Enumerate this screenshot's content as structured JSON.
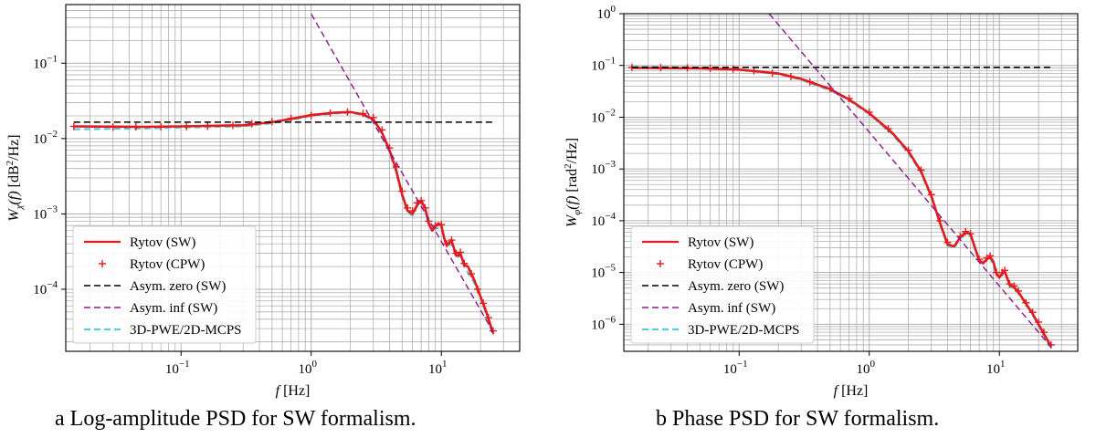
{
  "captions": {
    "a": "a Log-amplitude PSD for SW formalism.",
    "b": "b Phase PSD for SW formalism."
  },
  "chart_data": [
    {
      "type": "line",
      "panel": "a",
      "xscale": "log",
      "yscale": "log",
      "xlim": [
        0.013,
        40
      ],
      "ylim": [
        1.5e-05,
        0.6
      ],
      "xlabel_main": "f",
      "xlabel_unit": " [Hz]",
      "ylabel_main": "W",
      "ylabel_sub": "χ",
      "ylabel_fn": "(f)",
      "ylabel_unit_pre": " [dB",
      "ylabel_unit_sup": "2",
      "ylabel_unit_post": "/Hz]",
      "grid": true,
      "legend_position": "lower-left",
      "x_ticks": [
        {
          "value": 0.1,
          "base": "10",
          "exp": "−1"
        },
        {
          "value": 1,
          "base": "10",
          "exp": "0"
        },
        {
          "value": 10,
          "base": "10",
          "exp": "1"
        }
      ],
      "y_ticks": [
        {
          "value": 0.0001,
          "base": "10",
          "exp": "−4"
        },
        {
          "value": 0.001,
          "base": "10",
          "exp": "−3"
        },
        {
          "value": 0.01,
          "base": "10",
          "exp": "−2"
        },
        {
          "value": 0.1,
          "base": "10",
          "exp": "−1"
        }
      ],
      "series": [
        {
          "name": "Rytov (SW)",
          "color": "#e41a1c",
          "style": "solid",
          "width": 2.6,
          "marker": "none",
          "points": [
            [
              0.015,
              0.0145
            ],
            [
              0.05,
              0.0143
            ],
            [
              0.1,
              0.0145
            ],
            [
              0.3,
              0.015
            ],
            [
              0.5,
              0.0165
            ],
            [
              0.8,
              0.019
            ],
            [
              1.0,
              0.0205
            ],
            [
              1.5,
              0.022
            ],
            [
              2.0,
              0.0225
            ],
            [
              2.5,
              0.021
            ],
            [
              3.0,
              0.018
            ],
            [
              3.5,
              0.012
            ],
            [
              4.0,
              0.007
            ],
            [
              4.5,
              0.0038
            ],
            [
              5.0,
              0.0018
            ],
            [
              5.5,
              0.0011
            ],
            [
              6.0,
              0.001
            ],
            [
              6.5,
              0.0013
            ],
            [
              7.0,
              0.0015
            ],
            [
              7.5,
              0.0012
            ],
            [
              8.0,
              0.00075
            ],
            [
              8.5,
              0.0006
            ],
            [
              9.0,
              0.00068
            ],
            [
              9.5,
              0.00075
            ],
            [
              10.0,
              0.0007
            ],
            [
              10.5,
              0.00048
            ],
            [
              11.0,
              0.00038
            ],
            [
              11.5,
              0.00042
            ],
            [
              12.0,
              0.00044
            ],
            [
              13.0,
              0.00028
            ],
            [
              13.5,
              0.00028
            ],
            [
              14.0,
              0.0003
            ],
            [
              15.0,
              0.00021
            ],
            [
              16.0,
              0.0002
            ],
            [
              18.0,
              0.00013
            ],
            [
              20.0,
              8e-05
            ],
            [
              22.0,
              5.2e-05
            ],
            [
              25.0,
              2.6e-05
            ]
          ]
        },
        {
          "name": "Rytov (CPW)",
          "color": "#e41a1c",
          "style": "none",
          "width": 1.4,
          "marker": "plus",
          "points": [
            [
              0.015,
              0.0145
            ],
            [
              0.03,
              0.0142
            ],
            [
              0.045,
              0.0143
            ],
            [
              0.07,
              0.0143
            ],
            [
              0.11,
              0.0144
            ],
            [
              0.16,
              0.0146
            ],
            [
              0.25,
              0.015
            ],
            [
              0.35,
              0.0157
            ],
            [
              0.5,
              0.0168
            ],
            [
              0.7,
              0.0185
            ],
            [
              1.0,
              0.0202
            ],
            [
              1.4,
              0.0218
            ],
            [
              1.9,
              0.0225
            ],
            [
              2.5,
              0.0215
            ],
            [
              3.0,
              0.019
            ],
            [
              3.5,
              0.013
            ],
            [
              4.0,
              0.0075
            ],
            [
              4.5,
              0.0042
            ],
            [
              5.0,
              0.002
            ],
            [
              5.5,
              0.0012
            ],
            [
              6.0,
              0.0011
            ],
            [
              6.5,
              0.0014
            ],
            [
              7.0,
              0.0015
            ],
            [
              7.5,
              0.0012
            ],
            [
              8.0,
              0.0008
            ],
            [
              9.0,
              0.0007
            ],
            [
              10.0,
              0.00072
            ],
            [
              11.0,
              0.0004
            ],
            [
              12.0,
              0.00045
            ],
            [
              13.0,
              0.0003
            ],
            [
              14.0,
              0.00031
            ],
            [
              15.0,
              0.00022
            ],
            [
              17.0,
              0.00016
            ],
            [
              19.0,
              0.0001
            ],
            [
              21.0,
              6.5e-05
            ],
            [
              23.0,
              4.2e-05
            ],
            [
              25.0,
              2.8e-05
            ]
          ]
        },
        {
          "name": "Asym. zero (SW)",
          "color": "#000000",
          "style": "dashed",
          "width": 1.6,
          "marker": "none",
          "points": [
            [
              0.015,
              0.0165
            ],
            [
              25.0,
              0.0165
            ]
          ]
        },
        {
          "name": "Asym. inf (SW)",
          "color": "#8b1a8b",
          "style": "dashed",
          "width": 1.4,
          "marker": "none",
          "points": [
            [
              1.0,
              0.45
            ],
            [
              25.0,
              2.7e-05
            ]
          ]
        },
        {
          "name": "3D-PWE/2D-MCPS",
          "color": "#5bc8dc",
          "style": "dashed",
          "width": 2.2,
          "marker": "none",
          "points": [
            [
              0.015,
              0.0133
            ],
            [
              0.05,
              0.0136
            ],
            [
              0.1,
              0.014
            ],
            [
              0.3,
              0.0145
            ],
            [
              0.5,
              0.016
            ],
            [
              0.8,
              0.0185
            ],
            [
              1.0,
              0.02
            ],
            [
              1.5,
              0.0215
            ],
            [
              2.0,
              0.022
            ],
            [
              2.5,
              0.0205
            ],
            [
              3.0,
              0.0172
            ],
            [
              3.5,
              0.0115
            ],
            [
              4.0,
              0.0066
            ],
            [
              4.5,
              0.0035
            ],
            [
              5.0,
              0.0017
            ],
            [
              5.5,
              0.00105
            ],
            [
              6.0,
              0.00095
            ],
            [
              6.5,
              0.00125
            ],
            [
              7.0,
              0.00145
            ],
            [
              7.5,
              0.00115
            ],
            [
              8.0,
              0.00072
            ],
            [
              9.0,
              0.00064
            ],
            [
              10.0,
              0.00066
            ],
            [
              11.0,
              0.00037
            ],
            [
              12.0,
              0.0004
            ],
            [
              13.0,
              0.00026
            ],
            [
              14.0,
              0.00028
            ],
            [
              15.0,
              0.0002
            ],
            [
              18.0,
              0.00012
            ],
            [
              20.0,
              7.5e-05
            ],
            [
              22.0,
              4.8e-05
            ],
            [
              25.0,
              2.4e-05
            ]
          ]
        }
      ]
    },
    {
      "type": "line",
      "panel": "b",
      "xscale": "log",
      "yscale": "log",
      "xlim": [
        0.013,
        40
      ],
      "ylim": [
        3e-07,
        1
      ],
      "xlabel_main": "f",
      "xlabel_unit": " [Hz]",
      "ylabel_main": "W",
      "ylabel_sub": "φ",
      "ylabel_fn": "(f)",
      "ylabel_unit_pre": " [rad",
      "ylabel_unit_sup": "2",
      "ylabel_unit_post": "/Hz]",
      "grid": true,
      "legend_position": "lower-left",
      "x_ticks": [
        {
          "value": 0.1,
          "base": "10",
          "exp": "−1"
        },
        {
          "value": 1,
          "base": "10",
          "exp": "0"
        },
        {
          "value": 10,
          "base": "10",
          "exp": "1"
        }
      ],
      "y_ticks": [
        {
          "value": 1e-06,
          "base": "10",
          "exp": "−6"
        },
        {
          "value": 1e-05,
          "base": "10",
          "exp": "−5"
        },
        {
          "value": 0.0001,
          "base": "10",
          "exp": "−4"
        },
        {
          "value": 0.001,
          "base": "10",
          "exp": "−3"
        },
        {
          "value": 0.01,
          "base": "10",
          "exp": "−2"
        },
        {
          "value": 0.1,
          "base": "10",
          "exp": "−1"
        },
        {
          "value": 1,
          "base": "10",
          "exp": "0"
        }
      ],
      "series": [
        {
          "name": "Rytov (SW)",
          "color": "#e41a1c",
          "style": "solid",
          "width": 2.6,
          "marker": "none",
          "points": [
            [
              0.015,
              0.09
            ],
            [
              0.05,
              0.088
            ],
            [
              0.1,
              0.083
            ],
            [
              0.2,
              0.07
            ],
            [
              0.3,
              0.055
            ],
            [
              0.5,
              0.035
            ],
            [
              0.7,
              0.022
            ],
            [
              1.0,
              0.012
            ],
            [
              1.5,
              0.005
            ],
            [
              2.0,
              0.0022
            ],
            [
              2.5,
              0.0009
            ],
            [
              3.0,
              0.0003
            ],
            [
              3.5,
              9e-05
            ],
            [
              4.0,
              3.5e-05
            ],
            [
              4.5,
              3.2e-05
            ],
            [
              5.0,
              4.8e-05
            ],
            [
              5.5,
              6e-05
            ],
            [
              6.0,
              5.5e-05
            ],
            [
              6.5,
              3e-05
            ],
            [
              7.0,
              1.7e-05
            ],
            [
              7.5,
              1.5e-05
            ],
            [
              8.0,
              1.8e-05
            ],
            [
              8.5,
              2e-05
            ],
            [
              9.0,
              1.6e-05
            ],
            [
              9.5,
              9.5e-06
            ],
            [
              10.0,
              8e-06
            ],
            [
              10.5,
              9.5e-06
            ],
            [
              11.0,
              1.05e-05
            ],
            [
              12.0,
              5.8e-06
            ],
            [
              13.0,
              5.2e-06
            ],
            [
              14.0,
              4.2e-06
            ],
            [
              16.0,
              2.5e-06
            ],
            [
              18.0,
              1.6e-06
            ],
            [
              20.0,
              1e-06
            ],
            [
              22.0,
              6.5e-07
            ],
            [
              25.0,
              3.7e-07
            ]
          ]
        },
        {
          "name": "Rytov (CPW)",
          "color": "#e41a1c",
          "style": "none",
          "width": 1.4,
          "marker": "plus",
          "points": [
            [
              0.015,
              0.092
            ],
            [
              0.025,
              0.091
            ],
            [
              0.04,
              0.09
            ],
            [
              0.06,
              0.088
            ],
            [
              0.09,
              0.085
            ],
            [
              0.13,
              0.079
            ],
            [
              0.18,
              0.071
            ],
            [
              0.25,
              0.061
            ],
            [
              0.35,
              0.048
            ],
            [
              0.5,
              0.036
            ],
            [
              0.7,
              0.023
            ],
            [
              1.0,
              0.0125
            ],
            [
              1.4,
              0.006
            ],
            [
              2.0,
              0.0023
            ],
            [
              2.5,
              0.00095
            ],
            [
              3.0,
              0.00032
            ],
            [
              3.5,
              0.0001
            ],
            [
              4.0,
              3.8e-05
            ],
            [
              5.0,
              5e-05
            ],
            [
              5.5,
              6.2e-05
            ],
            [
              6.0,
              5.6e-05
            ],
            [
              7.0,
              1.8e-05
            ],
            [
              8.0,
              1.9e-05
            ],
            [
              8.5,
              2.1e-05
            ],
            [
              9.5,
              1e-05
            ],
            [
              10.5,
              1e-05
            ],
            [
              11.0,
              1.1e-05
            ],
            [
              12.0,
              6e-06
            ],
            [
              13.0,
              5.5e-06
            ],
            [
              14.0,
              4.4e-06
            ],
            [
              16.0,
              2.6e-06
            ],
            [
              18.0,
              1.7e-06
            ],
            [
              20.0,
              1.1e-06
            ],
            [
              22.0,
              7e-07
            ],
            [
              25.0,
              4e-07
            ]
          ]
        },
        {
          "name": "Asym. zero (SW)",
          "color": "#000000",
          "style": "dashed",
          "width": 1.6,
          "marker": "none",
          "points": [
            [
              0.015,
              0.092
            ],
            [
              25.0,
              0.092
            ]
          ]
        },
        {
          "name": "Asym. inf (SW)",
          "color": "#8b1a8b",
          "style": "dashed",
          "width": 1.4,
          "marker": "none",
          "points": [
            [
              0.17,
              1.0
            ],
            [
              25.0,
              3.6e-07
            ]
          ]
        },
        {
          "name": "3D-PWE/2D-MCPS",
          "color": "#5bc8dc",
          "style": "dashed",
          "width": 2.2,
          "marker": "none",
          "points": [
            [
              0.015,
              0.095
            ],
            [
              0.05,
              0.09
            ],
            [
              0.1,
              0.082
            ],
            [
              0.2,
              0.068
            ],
            [
              0.3,
              0.053
            ],
            [
              0.5,
              0.033
            ],
            [
              0.7,
              0.021
            ],
            [
              1.0,
              0.0115
            ],
            [
              1.5,
              0.0047
            ],
            [
              2.0,
              0.002
            ],
            [
              2.5,
              0.00085
            ],
            [
              3.0,
              0.00028
            ],
            [
              3.5,
              8.5e-05
            ],
            [
              4.0,
              3.3e-05
            ],
            [
              4.5,
              3e-05
            ],
            [
              5.0,
              4.5e-05
            ],
            [
              5.5,
              5.6e-05
            ],
            [
              6.0,
              5.1e-05
            ],
            [
              7.0,
              1.6e-05
            ],
            [
              8.0,
              1.7e-05
            ],
            [
              8.5,
              1.9e-05
            ],
            [
              9.5,
              9e-06
            ],
            [
              10.5,
              9e-06
            ],
            [
              11.0,
              1e-05
            ],
            [
              12.0,
              5.5e-06
            ],
            [
              14.0,
              4e-06
            ],
            [
              16.0,
              2.4e-06
            ],
            [
              18.0,
              1.5e-06
            ],
            [
              20.0,
              9.5e-07
            ],
            [
              22.0,
              6e-07
            ],
            [
              25.0,
              3.4e-07
            ]
          ]
        }
      ]
    }
  ]
}
